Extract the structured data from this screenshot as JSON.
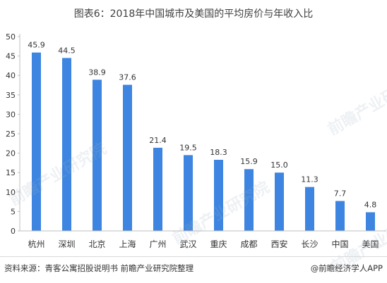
{
  "title": "图表6：2018年中国城市及美国的平均房价与年收入比",
  "source_text": "资料来源：青客公寓招股说明书 前瞻产业研究院整理",
  "brand_text": "@前瞻经济学人APP",
  "watermark_text": "前瞻产业研究院",
  "chart_data": {
    "type": "bar",
    "categories": [
      "杭州",
      "深圳",
      "北京",
      "上海",
      "广州",
      "武汉",
      "重庆",
      "成都",
      "西安",
      "长沙",
      "中国",
      "美国"
    ],
    "values": [
      45.9,
      44.5,
      38.9,
      37.6,
      21.4,
      19.5,
      18.3,
      15.9,
      15.0,
      11.3,
      7.7,
      4.8
    ],
    "value_labels": [
      "45.9",
      "44.5",
      "38.9",
      "37.6",
      "21.4",
      "19.5",
      "18.3",
      "15.9",
      "15.0",
      "11.3",
      "7.7",
      "4.8"
    ],
    "ylim": [
      0,
      50
    ],
    "yticks": [
      0,
      5,
      10,
      15,
      20,
      25,
      30,
      35,
      40,
      45,
      50
    ],
    "grid": false,
    "legend": "none",
    "bar_color": "#3d85e0"
  }
}
